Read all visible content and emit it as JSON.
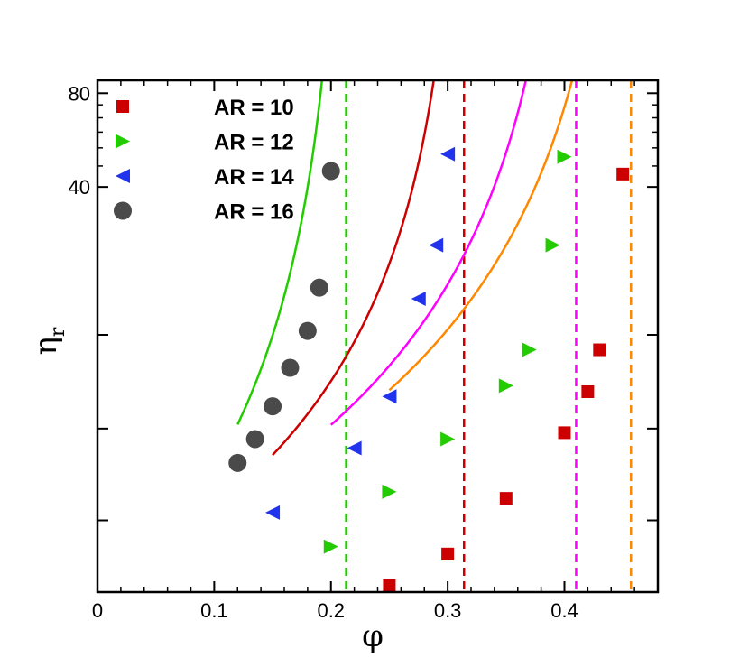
{
  "chart_data": {
    "type": "scatter",
    "title": "",
    "xlabel": "φ",
    "ylabel": "η",
    "ylabel_subscript": "r",
    "xlim": [
      0,
      0.48
    ],
    "ylim": [
      2,
      88
    ],
    "y_scale": "log",
    "x_tick_labels": [
      "0",
      "0.1",
      "0.2",
      "0.3",
      "0.4"
    ],
    "x_ticks": [
      0,
      0.1,
      0.2,
      0.3,
      0.4
    ],
    "y_tick_labels": [
      "80",
      "40"
    ],
    "y_ticks_major": [
      80,
      40
    ],
    "y_ticks_unlabeled": [
      3.4,
      6.7,
      13.4
    ],
    "legend_position": "top-left",
    "series": [
      {
        "name": "AR = 10",
        "marker": "square",
        "color": "#cc0000",
        "x": [
          0.25,
          0.3,
          0.35,
          0.4,
          0.42,
          0.43,
          0.45
        ],
        "y": [
          2.1,
          2.65,
          4.0,
          6.5,
          8.8,
          12.0,
          44.0
        ]
      },
      {
        "name": "AR = 12",
        "marker": "triangle-right",
        "color": "#22cc00",
        "x": [
          0.2,
          0.25,
          0.3,
          0.35,
          0.37,
          0.39,
          0.4
        ],
        "y": [
          2.8,
          4.2,
          6.2,
          9.2,
          12.0,
          26.0,
          50.0
        ]
      },
      {
        "name": "AR = 14",
        "marker": "triangle-left",
        "color": "#2233ee",
        "x": [
          0.15,
          0.22,
          0.25,
          0.275,
          0.29,
          0.3
        ],
        "y": [
          3.6,
          5.8,
          8.5,
          17.5,
          26.0,
          51.0
        ]
      },
      {
        "name": "AR = 16",
        "marker": "circle",
        "color": "#4a4a4a",
        "x": [
          0.12,
          0.135,
          0.15,
          0.165,
          0.18,
          0.19,
          0.2
        ],
        "y": [
          5.2,
          6.2,
          7.9,
          10.5,
          13.8,
          19.0,
          45.0
        ]
      }
    ],
    "fit_curves": [
      {
        "color": "#22cc00",
        "phi_max": 0.213,
        "a": -1.6931,
        "b": 0.5296,
        "x_from": 0.12,
        "x_to": 0.2105
      },
      {
        "color": "#cc0000",
        "phi_max": 0.314,
        "a": -1.5041,
        "b": 0.7297,
        "x_from": 0.15,
        "x_to": 0.3095
      },
      {
        "color": "#ff00ff",
        "phi_max": 0.41,
        "a": -1.6074,
        "b": 0.8542,
        "x_from": 0.2,
        "x_to": 0.4054
      },
      {
        "color": "#ff8800",
        "phi_max": 0.457,
        "a": -1.6233,
        "b": 0.9008,
        "x_from": 0.25,
        "x_to": 0.4544
      }
    ],
    "asymptotes": [
      {
        "x": 0.213,
        "color": "#22cc00"
      },
      {
        "x": 0.314,
        "color": "#cc0000"
      },
      {
        "x": 0.41,
        "color": "#ff00ff"
      },
      {
        "x": 0.457,
        "color": "#ff8800"
      }
    ]
  }
}
